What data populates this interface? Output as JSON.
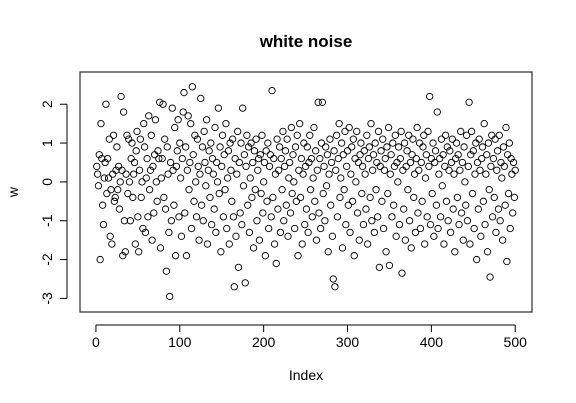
{
  "chart_data": {
    "type": "scatter",
    "title": "white noise",
    "xlabel": "Index",
    "ylabel": "w",
    "xlim": [
      -19,
      520
    ],
    "xticks": [
      0,
      100,
      200,
      300,
      400,
      500
    ],
    "ylim": [
      -3.35,
      2.83
    ],
    "yticks": [
      -3,
      -2,
      -1,
      0,
      1,
      2
    ],
    "color": "#000000",
    "values": [
      0.4,
      0.2,
      -0.1,
      0.7,
      -2.0,
      1.5,
      0.6,
      -0.6,
      -1.1,
      0.1,
      0.5,
      2.0,
      -0.3,
      0.6,
      0.1,
      1.1,
      -1.4,
      -0.2,
      -1.6,
      0.2,
      1.2,
      -0.5,
      -0.4,
      0.3,
      0.9,
      -0.2,
      0.4,
      -0.7,
      0.0,
      2.2,
      0.3,
      -1.9,
      1.8,
      -1.0,
      -1.8,
      0.2,
      1.2,
      -0.3,
      1.1,
      0.0,
      -1.0,
      0.6,
      1.0,
      -0.4,
      0.2,
      0.5,
      -1.6,
      0.8,
      1.3,
      -0.9,
      -1.8,
      0.3,
      1.1,
      -0.4,
      0.0,
      -1.2,
      1.5,
      0.9,
      -1.3,
      0.1,
      0.6,
      -0.9,
      1.7,
      -0.2,
      0.3,
      1.2,
      -1.5,
      0.4,
      -0.8,
      0.7,
      1.6,
      0.0,
      -0.5,
      0.8,
      0.6,
      2.05,
      -1.7,
      0.1,
      0.6,
      2.0,
      -0.4,
      1.1,
      -0.7,
      -2.3,
      0.9,
      0.2,
      -1.3,
      -2.95,
      0.5,
      -1.0,
      1.9,
      0.3,
      -0.6,
      1.4,
      -1.9,
      0.4,
      0.8,
      1.6,
      -0.9,
      1.0,
      0.1,
      -1.4,
      0.6,
      1.8,
      2.3,
      -0.8,
      0.9,
      -1.9,
      0.3,
      1.7,
      -0.2,
      0.5,
      1.5,
      -1.2,
      2.45,
      0.7,
      -0.5,
      1.2,
      0.0,
      -0.9,
      1.1,
      0.4,
      -1.5,
      0.2,
      2.15,
      -0.6,
      0.9,
      -1.0,
      1.3,
      0.5,
      -0.1,
      1.6,
      -1.6,
      0.3,
      0.8,
      -0.4,
      1.0,
      -1.1,
      0.6,
      0.2,
      -0.7,
      1.4,
      -1.3,
      0.5,
      0.0,
      1.9,
      -0.3,
      0.9,
      -1.8,
      0.4,
      1.2,
      -0.9,
      0.7,
      -0.2,
      1.5,
      -1.2,
      0.1,
      0.8,
      -1.6,
      1.0,
      0.3,
      -0.5,
      1.1,
      -0.9,
      -2.7,
      0.6,
      -1.4,
      0.2,
      1.3,
      -2.2,
      0.5,
      -0.8,
      1.0,
      -1.1,
      1.9,
      -0.1,
      0.7,
      -2.6,
      0.4,
      1.2,
      -0.6,
      0.9,
      -1.3,
      0.1,
      1.0,
      -0.4,
      0.5,
      -1.7,
      0.8,
      -0.2,
      1.1,
      -1.0,
      0.3,
      0.6,
      -1.5,
      0.7,
      -0.3,
      1.2,
      -0.8,
      0.0,
      0.5,
      -1.9,
      0.8,
      -0.5,
      1.0,
      -1.2,
      0.4,
      0.7,
      -0.9,
      2.35,
      -0.4,
      0.6,
      -1.6,
      0.2,
      -2.1,
      1.1,
      -0.7,
      0.3,
      0.9,
      -1.3,
      0.6,
      -0.2,
      1.3,
      -1.0,
      0.4,
      0.8,
      -0.6,
      1.1,
      -1.4,
      0.1,
      0.5,
      -0.8,
      1.4,
      -0.3,
      0.7,
      0.0,
      -1.2,
      0.9,
      -0.5,
      1.2,
      -1.9,
      0.3,
      1.5,
      -0.4,
      0.6,
      -1.6,
      0.2,
      1.0,
      -1.1,
      0.4,
      -0.7,
      0.9,
      -1.3,
      0.5,
      1.2,
      -0.2,
      0.6,
      -0.9,
      0.1,
      1.4,
      -0.5,
      0.8,
      -1.5,
      0.3,
      2.05,
      -0.8,
      0.6,
      -1.2,
      1.0,
      2.05,
      -0.3,
      0.4,
      -1.0,
      0.9,
      -0.1,
      0.7,
      -1.8,
      0.2,
      1.1,
      -0.6,
      0.5,
      -1.4,
      -2.5,
      0.8,
      -2.7,
      0.3,
      1.2,
      -0.9,
      0.6,
      1.5,
      -0.4,
      0.1,
      1.0,
      -1.7,
      0.7,
      -0.2,
      1.3,
      -1.1,
      0.4,
      0.8,
      -0.6,
      1.4,
      -1.3,
      0.2,
      0.9,
      -0.5,
      1.1,
      -1.9,
      0.6,
      0.0,
      1.3,
      -0.8,
      0.5,
      -1.5,
      0.7,
      1.0,
      -0.3,
      0.4,
      -1.1,
      0.8,
      0.2,
      -0.7,
      1.2,
      -1.6,
      0.6,
      0.9,
      -0.4,
      1.5,
      -1.0,
      0.3,
      0.7,
      -1.3,
      1.0,
      -0.2,
      0.5,
      -0.9,
      1.3,
      -2.2,
      0.4,
      0.8,
      -0.5,
      1.1,
      -1.2,
      0.3,
      0.6,
      -1.8,
      0.9,
      -0.3,
      1.4,
      -2.15,
      0.2,
      0.7,
      -0.9,
      1.0,
      -0.6,
      0.4,
      1.2,
      -1.4,
      0.5,
      0.0,
      0.9,
      -1.1,
      0.6,
      1.3,
      -2.35,
      0.3,
      -0.7,
      1.0,
      -1.5,
      0.4,
      0.8,
      -0.2,
      1.2,
      -1.0,
      0.5,
      -1.7,
      0.7,
      1.1,
      -0.4,
      0.2,
      -1.3,
      0.6,
      1.4,
      -0.8,
      0.3,
      1.0,
      -1.2,
      0.5,
      -0.5,
      0.9,
      1.2,
      -1.6,
      0.1,
      0.7,
      -0.9,
      1.3,
      0.4,
      2.2,
      -1.1,
      0.6,
      -0.3,
      1.0,
      -1.4,
      0.5,
      0.8,
      -0.6,
      1.8,
      -1.2,
      0.2,
      0.6,
      -0.9,
      1.1,
      -0.1,
      0.7,
      -1.6,
      0.4,
      1.2,
      -0.5,
      0.9,
      -1.0,
      0.3,
      0.8,
      -1.3,
      0.5,
      1.1,
      -0.7,
      0.2,
      -1.8,
      0.6,
      1.0,
      -0.4,
      0.7,
      -1.1,
      0.3,
      1.3,
      -0.8,
      0.5,
      -1.5,
      0.9,
      0.0,
      -0.6,
      1.2,
      -1.0,
      0.4,
      2.05,
      -1.6,
      0.7,
      1.3,
      -0.3,
      0.8,
      -1.2,
      0.2,
      1.0,
      -2.0,
      0.5,
      -0.7,
      1.1,
      0.3,
      -1.4,
      0.6,
      0.9,
      -0.5,
      1.5,
      -1.1,
      0.2,
      0.7,
      -1.8,
      1.0,
      -0.2,
      -2.45,
      0.4,
      1.2,
      -0.9,
      0.6,
      -0.4,
      1.1,
      -1.3,
      0.3,
      0.8,
      -0.7,
      1.2,
      -1.0,
      0.5,
      0.1,
      -1.5,
      0.9,
      0.4,
      -0.6,
      1.4,
      -2.05,
      0.7,
      -0.3,
      1.0,
      -1.2,
      0.6,
      0.2,
      -0.8,
      0.5,
      -0.4,
      0.3
    ]
  }
}
